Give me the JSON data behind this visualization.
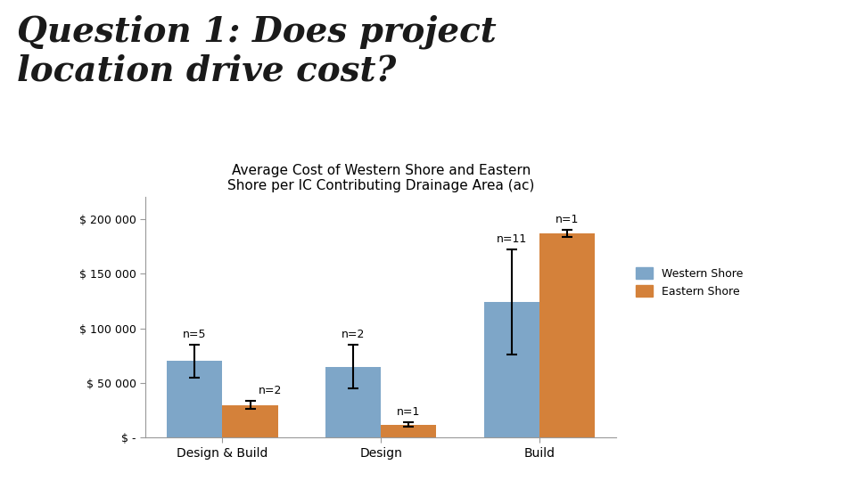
{
  "title_main": "Question 1: Does project\nlocation drive cost?",
  "chart_title": "Average Cost of Western Shore and Eastern\nShore per IC Contributing Drainage Area (ac)",
  "categories": [
    "Design & Build",
    "Design",
    "Build"
  ],
  "western_shore_values": [
    70000,
    65000,
    124000
  ],
  "eastern_shore_values": [
    30000,
    12000,
    187000
  ],
  "western_shore_errors": [
    15000,
    20000,
    48000
  ],
  "eastern_shore_errors": [
    4000,
    2000,
    3000
  ],
  "western_n": [
    "n=5",
    "n=2",
    "n=11"
  ],
  "eastern_n": [
    "n=2",
    "n=1",
    "n=1"
  ],
  "western_color": "#7EA6C8",
  "eastern_color": "#D4813A",
  "ylim": [
    0,
    220000
  ],
  "yticks": [
    0,
    50000,
    100000,
    150000,
    200000
  ],
  "ytick_labels": [
    "$ -",
    "$ 50 000",
    "$ 100 000",
    "$ 150 000",
    "$ 200 000"
  ],
  "legend_labels": [
    "Western Shore",
    "Eastern Shore"
  ],
  "bar_width": 0.35,
  "background_color": "#FFFFFF"
}
